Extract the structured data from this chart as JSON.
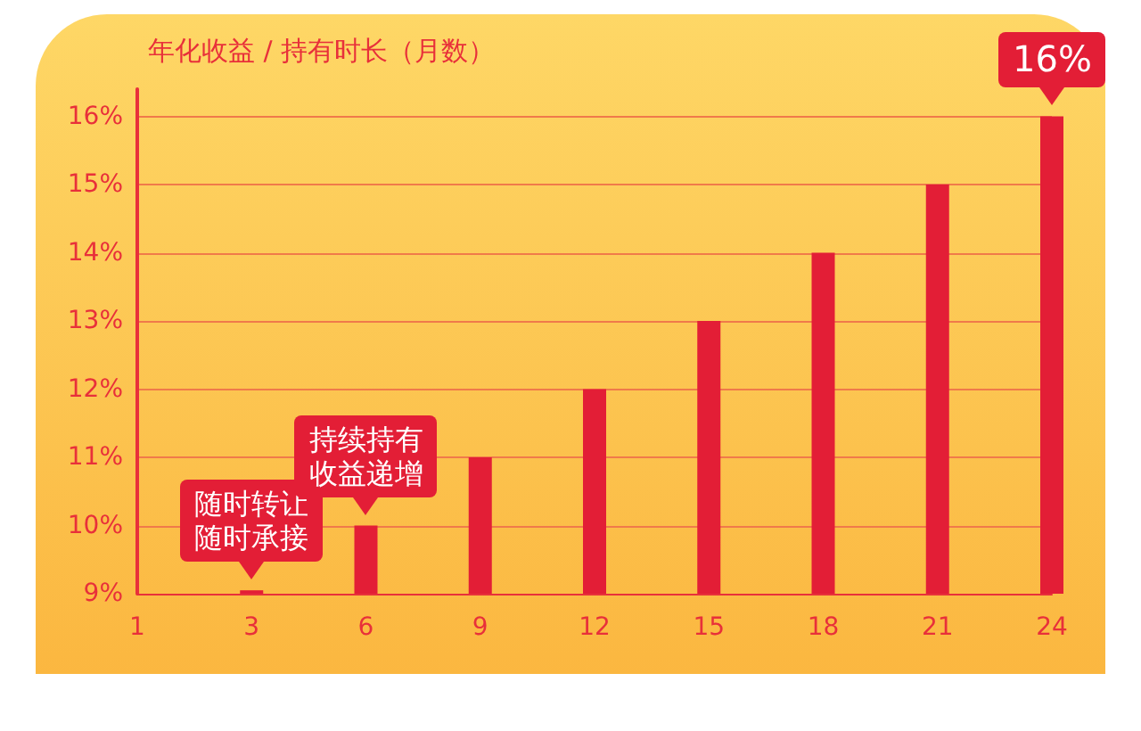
{
  "chart_data": {
    "type": "bar",
    "title": "年化收益 / 持有时长（月数）",
    "categories": [
      "1",
      "3",
      "6",
      "9",
      "12",
      "15",
      "18",
      "21",
      "24"
    ],
    "values": [
      null,
      9.05,
      10,
      11,
      12,
      13,
      14,
      15,
      16
    ],
    "color": "#e31e36",
    "ylim": [
      9,
      16.4
    ],
    "yticks": [
      {
        "value": 9,
        "label": "9%"
      },
      {
        "value": 10,
        "label": "10%"
      },
      {
        "value": 11,
        "label": "11%"
      },
      {
        "value": 12,
        "label": "12%"
      },
      {
        "value": 13,
        "label": "13%"
      },
      {
        "value": 14,
        "label": "14%"
      },
      {
        "value": 15,
        "label": "15%"
      },
      {
        "value": 16,
        "label": "16%"
      }
    ],
    "grid": "y",
    "annotations": [
      {
        "text": "随时转让随时承接",
        "x": "3",
        "y": 9.05
      },
      {
        "text": "持续持有收益递增",
        "x": "6",
        "y": 10
      },
      {
        "text": "16%",
        "x": "24",
        "y": 16
      }
    ]
  }
}
